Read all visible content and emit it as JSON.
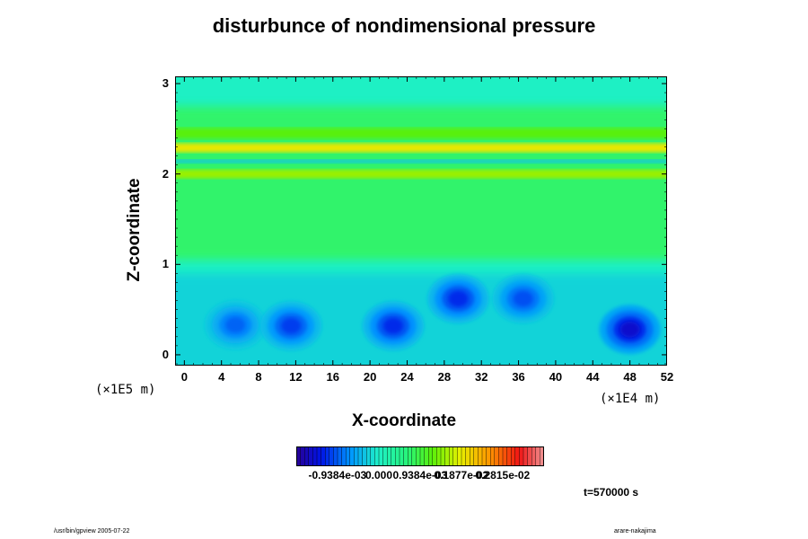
{
  "title": "disturbunce of nondimensional pressure",
  "chart_data": {
    "type": "heatmap",
    "title": "disturbunce of nondimensional pressure",
    "xlabel": "X-coordinate",
    "ylabel": "Z-coordinate",
    "x_scale_label": "(×1E4 m)",
    "y_scale_label": "(×1E5 m)",
    "xlim": [
      -1,
      52
    ],
    "ylim": [
      -0.12,
      3.08
    ],
    "x_ticks": [
      "0",
      "4",
      "8",
      "12",
      "16",
      "20",
      "24",
      "28",
      "32",
      "36",
      "40",
      "44",
      "48",
      "52"
    ],
    "x_tick_values": [
      0,
      4,
      8,
      12,
      16,
      20,
      24,
      28,
      32,
      36,
      40,
      44,
      48,
      52
    ],
    "y_ticks": [
      "0",
      "1",
      "2",
      "3"
    ],
    "y_tick_values": [
      0,
      1,
      2,
      3
    ],
    "colorbar_labels": [
      "-0.9384e-03",
      "0.000",
      "0.9384e-03",
      "0.1877e-02",
      "0.2815e-02"
    ],
    "colorbar_values": [
      -0.0009384,
      0.0,
      0.0009384,
      0.001877,
      0.002815
    ],
    "colorbar_range": [
      -0.0018768,
      0.0037536
    ],
    "bands": [
      {
        "z": 2.0,
        "value": 0.0015,
        "width": 0.05
      },
      {
        "z": 2.29,
        "value": 0.0019,
        "width": 0.05
      },
      {
        "z": 2.45,
        "value": 0.0012,
        "width": 0.06
      },
      {
        "z": 2.14,
        "value": -0.0003,
        "width": 0.02
      }
    ],
    "low_cells": [
      {
        "x": 5.5,
        "z": 0.33,
        "value": -0.0009
      },
      {
        "x": 11.5,
        "z": 0.32,
        "value": -0.0011
      },
      {
        "x": 22.5,
        "z": 0.32,
        "value": -0.0012
      },
      {
        "x": 29.5,
        "z": 0.62,
        "value": -0.0012
      },
      {
        "x": 36.5,
        "z": 0.62,
        "value": -0.001
      },
      {
        "x": 48.0,
        "z": 0.28,
        "value": -0.0015
      }
    ],
    "time": "t=570000 s"
  },
  "footer_left": "/usr/bin/gpview 2005-07-22",
  "footer_right": "arare-nakajima"
}
